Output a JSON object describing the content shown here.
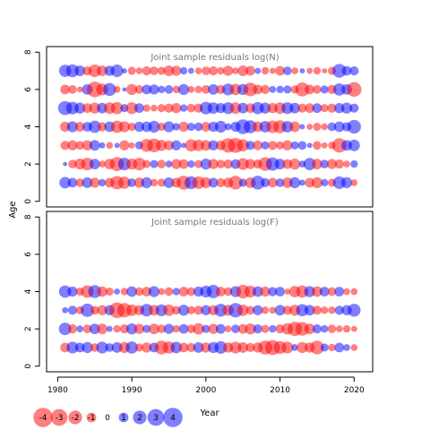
{
  "figure": {
    "ylabel": "Age",
    "xlabel": "Year",
    "legend_labels": [
      "-4",
      "-3",
      "-2",
      "-1",
      "0",
      "1",
      "2",
      "3",
      "4"
    ],
    "colors": {
      "negative": "#ff0000",
      "positive": "#0000ff",
      "title": "#777777",
      "axis": "#000000"
    }
  },
  "chart_data": [
    {
      "type": "scatter",
      "title": "Joint sample residuals log(N)",
      "xlim": [
        1978.5,
        2022.5
      ],
      "ylim": [
        -0.3,
        8.3
      ],
      "yticks": [
        0,
        2,
        4,
        6,
        8
      ],
      "ages": [
        1,
        2,
        3,
        4,
        5,
        6,
        7
      ],
      "years_start": 1981,
      "years_end": 2020,
      "residuals": {
        "7": [
          1.6,
          1.8,
          1.2,
          -0.9,
          -1.7,
          -1.2,
          1.1,
          1.7,
          0.3,
          -0.7,
          -0.5,
          -0.9,
          -0.8,
          -0.7,
          -1.2,
          -1.1,
          0.6,
          0.4,
          -0.5,
          -0.8,
          -0.9,
          -0.6,
          -1.1,
          -0.5,
          -1.2,
          -1.0,
          0.4,
          -0.6,
          -0.4,
          -1.0,
          0.8,
          -0.5,
          0.3,
          -0.4,
          -0.6,
          -0.3,
          -0.7,
          2.0,
          1.0,
          0.9
        ],
        "6": [
          -1.0,
          -0.8,
          -0.4,
          1.2,
          -2.6,
          -1.5,
          1.8,
          -0.5,
          0.2,
          -1.3,
          -0.8,
          1.0,
          1.1,
          0.6,
          0.8,
          -0.6,
          1.3,
          -0.5,
          -0.6,
          -0.8,
          1.2,
          -0.9,
          1.5,
          -1.4,
          1.3,
          -2.0,
          -1.0,
          -0.9,
          0.5,
          0.6,
          0.7,
          -0.7,
          -2.1,
          -1.0,
          -0.8,
          0.7,
          -0.9,
          1.6,
          1.2,
          -2.3
        ],
        "5": [
          2.1,
          1.7,
          1.3,
          -1.0,
          -1.3,
          1.2,
          -1.4,
          -1.6,
          0.7,
          -1.5,
          1.0,
          -0.6,
          -0.5,
          -0.7,
          -0.9,
          -1.1,
          0.6,
          -0.8,
          -0.9,
          1.7,
          1.4,
          1.1,
          1.5,
          -1.4,
          1.2,
          -1.0,
          1.6,
          1.3,
          -1.1,
          -1.4,
          1.5,
          1.2,
          -0.9,
          -1.0,
          1.0,
          -0.7,
          -0.9,
          1.1,
          1.3,
          0.9
        ],
        "4": [
          -1.1,
          1.3,
          -1.0,
          1.0,
          1.6,
          -0.9,
          1.2,
          -1.6,
          -1.3,
          -0.7,
          1.1,
          1.2,
          1.5,
          -0.7,
          1.3,
          0.6,
          -1.1,
          0.7,
          0.8,
          -1.0,
          1.1,
          1.5,
          0.5,
          1.1,
          2.3,
          1.8,
          -1.2,
          1.4,
          -1.7,
          -1.8,
          1.4,
          -1.2,
          0.3,
          -0.4,
          -0.7,
          -0.5,
          0.8,
          1.2,
          0.9,
          2.0
        ],
        "3": [
          -0.9,
          -1.1,
          -0.8,
          -1.1,
          1.2,
          0.4,
          -0.5,
          0.3,
          -1.1,
          -0.4,
          0.7,
          -1.8,
          -2.0,
          -1.3,
          -1.0,
          1.1,
          0.3,
          -1.6,
          -1.4,
          -1.2,
          1.1,
          -1.0,
          -2.2,
          -2.4,
          -1.6,
          0.9,
          -1.0,
          0.7,
          -0.9,
          -0.7,
          -1.1,
          0.7,
          0.8,
          0.3,
          -0.8,
          -0.4,
          -0.6,
          -2.2,
          1.2,
          1.4
        ],
        "2": [
          0.2,
          -0.8,
          -1.3,
          -1.7,
          1.2,
          -0.5,
          -1.2,
          -2.1,
          1.7,
          -1.3,
          -1.7,
          -0.7,
          0.7,
          -0.8,
          0.5,
          -1.1,
          -1.0,
          0.6,
          -0.7,
          1.3,
          -1.1,
          -0.8,
          -0.9,
          1.0,
          -1.5,
          -1.1,
          -0.9,
          -2.0,
          1.9,
          1.2,
          -1.0,
          -1.3,
          0.5,
          1.6,
          -1.2,
          0.8,
          -1.1,
          -0.9,
          -0.5,
          0.6
        ],
        "1": [
          1.4,
          1.0,
          -0.8,
          1.2,
          -1.1,
          0.6,
          -1.0,
          -1.9,
          -1.6,
          0.8,
          -1.1,
          1.3,
          -0.6,
          -0.7,
          1.2,
          -1.0,
          -2.1,
          1.8,
          -1.7,
          -1.3,
          1.0,
          -0.9,
          -1.1,
          -2.0,
          0.7,
          -1.2,
          2.0,
          0.9,
          -1.0,
          0.8,
          -1.2,
          1.3,
          0.4,
          -1.0,
          -1.3,
          0.6,
          -0.7,
          1.7,
          1.3,
          -0.5
        ]
      }
    },
    {
      "type": "scatter",
      "title": "Joint sample residuals log(F)",
      "xlim": [
        1978.5,
        2022.5
      ],
      "ylim": [
        -0.3,
        8.3
      ],
      "xticks": [
        1980,
        1990,
        2000,
        2010,
        2020
      ],
      "yticks": [
        0,
        2,
        4,
        6,
        8
      ],
      "ages": [
        1,
        2,
        3,
        4
      ],
      "years_start": 1981,
      "years_end": 2020,
      "residuals": {
        "4": [
          1.6,
          1.1,
          -0.7,
          -1.7,
          1.8,
          -1.2,
          -0.7,
          0.4,
          -0.6,
          1.2,
          -0.8,
          -1.0,
          1.3,
          -0.5,
          -0.8,
          0.6,
          -1.0,
          -0.8,
          1.1,
          1.5,
          1.9,
          -1.0,
          -0.8,
          1.3,
          -2.0,
          -1.5,
          1.2,
          -1.1,
          0.9,
          1.0,
          -0.4,
          -1.4,
          -1.6,
          1.3,
          -1.2,
          1.0,
          -0.8,
          1.0,
          -0.5,
          -0.5
        ],
        "3": [
          0.4,
          0.9,
          -0.7,
          1.9,
          -0.8,
          -1.1,
          1.1,
          -2.6,
          -2.2,
          -1.4,
          -1.1,
          1.7,
          -1.2,
          1.5,
          -1.4,
          -0.8,
          1.3,
          -0.7,
          -0.9,
          1.1,
          -1.1,
          1.8,
          -1.3,
          2.2,
          -1.4,
          -0.8,
          1.1,
          -0.6,
          -0.5,
          1.2,
          -0.9,
          -1.3,
          1.6,
          1.2,
          -0.9,
          -0.6,
          -0.6,
          0.9,
          1.1,
          1.8
        ],
        "2": [
          1.7,
          -0.9,
          0.5,
          -0.8,
          1.2,
          -1.2,
          0.4,
          -0.6,
          -0.9,
          1.3,
          -1.1,
          0.7,
          -1.2,
          -0.8,
          1.1,
          -0.6,
          1.0,
          -0.8,
          -1.4,
          0.7,
          -1.1,
          1.0,
          -0.5,
          0.8,
          -1.0,
          -1.3,
          0.9,
          -0.7,
          0.6,
          -0.9,
          -1.4,
          -2.2,
          -2.0,
          -1.2,
          0.9,
          0.6,
          -0.8,
          -0.5,
          -0.6,
          -0.4
        ],
        "1": [
          -1.0,
          1.5,
          1.0,
          1.3,
          -0.8,
          1.5,
          0.8,
          1.2,
          -1.3,
          1.6,
          -0.7,
          -1.1,
          1.0,
          -2.0,
          -1.6,
          1.4,
          -1.0,
          -0.9,
          1.2,
          -1.1,
          1.3,
          1.7,
          -1.1,
          -1.5,
          -1.2,
          -0.9,
          -1.1,
          -2.1,
          -2.4,
          -1.8,
          -1.5,
          0.5,
          -1.3,
          -1.1,
          -2.0,
          0.7,
          -0.6,
          1.0,
          0.5,
          -0.5
        ]
      }
    }
  ]
}
